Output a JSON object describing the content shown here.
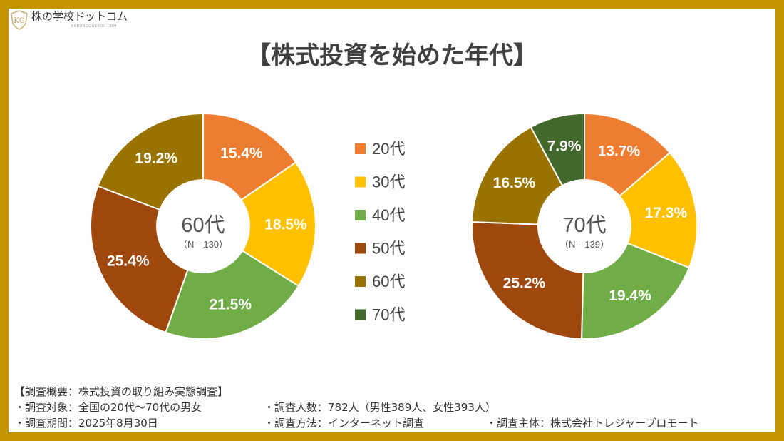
{
  "logo": {
    "text": "株の学校ドットコム",
    "sub": "KABUNOGAKKOU.COM",
    "mark": "KG"
  },
  "title": "【株式投資を始めた年代】",
  "colors": {
    "border": "#C49300",
    "20代": "#ED7D31",
    "30代": "#FFC000",
    "40代": "#70AD47",
    "50代": "#9E480E",
    "60代": "#997300",
    "70代": "#43682B"
  },
  "chart_data": [
    {
      "type": "pie",
      "donut": true,
      "center_label": "60代",
      "center_sub": "（N＝130）",
      "categories": [
        "20代",
        "30代",
        "40代",
        "50代",
        "60代"
      ],
      "values": [
        15.4,
        18.5,
        21.5,
        25.4,
        19.2
      ],
      "labels": [
        "15.4%",
        "18.5%",
        "21.5%",
        "25.4%",
        "19.2%"
      ]
    },
    {
      "type": "pie",
      "donut": true,
      "center_label": "70代",
      "center_sub": "（N＝139）",
      "categories": [
        "20代",
        "30代",
        "40代",
        "50代",
        "60代",
        "70代"
      ],
      "values": [
        13.7,
        17.3,
        19.4,
        25.2,
        16.5,
        7.9
      ],
      "labels": [
        "13.7%",
        "17.3%",
        "19.4%",
        "25.2%",
        "16.5%",
        "7.9%"
      ]
    }
  ],
  "legend": [
    "20代",
    "30代",
    "40代",
    "50代",
    "60代",
    "70代"
  ],
  "notes": {
    "heading": "【調査概要：株式投資の取り組み実態調査】",
    "target": "・調査対象：全国の20代～70代の男女",
    "count": "・調査人数：782人（男性389人、女性393人）",
    "period": "・調査期間：2025年8月30日",
    "method": "・調査方法：インターネット調査",
    "sponsor": "・調査主体：株式会社トレジャープロモート"
  }
}
